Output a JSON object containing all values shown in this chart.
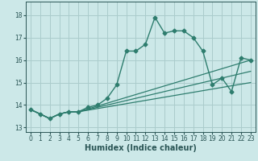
{
  "xlabel": "Humidex (Indice chaleur)",
  "bg_color": "#cce8e8",
  "grid_color": "#aacccc",
  "line_color": "#2e7d6e",
  "xlim": [
    -0.5,
    23.5
  ],
  "ylim": [
    12.8,
    18.6
  ],
  "yticks": [
    13,
    14,
    15,
    16,
    17,
    18
  ],
  "xticks": [
    0,
    1,
    2,
    3,
    4,
    5,
    6,
    7,
    8,
    9,
    10,
    11,
    12,
    13,
    14,
    15,
    16,
    17,
    18,
    19,
    20,
    21,
    22,
    23
  ],
  "series": [
    [
      0,
      13.8
    ],
    [
      1,
      13.6
    ],
    [
      2,
      13.4
    ],
    [
      3,
      13.6
    ],
    [
      4,
      13.7
    ],
    [
      5,
      13.7
    ],
    [
      6,
      13.9
    ],
    [
      7,
      14.0
    ],
    [
      8,
      14.3
    ],
    [
      9,
      14.9
    ],
    [
      10,
      16.4
    ],
    [
      11,
      16.4
    ],
    [
      12,
      16.7
    ],
    [
      13,
      17.9
    ],
    [
      14,
      17.2
    ],
    [
      15,
      17.3
    ],
    [
      16,
      17.3
    ],
    [
      17,
      17.0
    ],
    [
      18,
      16.4
    ],
    [
      19,
      14.9
    ],
    [
      20,
      15.2
    ],
    [
      21,
      14.6
    ],
    [
      22,
      16.1
    ],
    [
      23,
      16.0
    ]
  ],
  "fan_lines": [
    [
      [
        0,
        13.8
      ],
      [
        1,
        13.6
      ],
      [
        2,
        13.4
      ],
      [
        3,
        13.6
      ],
      [
        4,
        13.7
      ],
      [
        5,
        13.7
      ],
      [
        23,
        16.0
      ]
    ],
    [
      [
        0,
        13.8
      ],
      [
        1,
        13.6
      ],
      [
        2,
        13.4
      ],
      [
        3,
        13.6
      ],
      [
        4,
        13.7
      ],
      [
        5,
        13.7
      ],
      [
        23,
        15.5
      ]
    ],
    [
      [
        0,
        13.8
      ],
      [
        1,
        13.6
      ],
      [
        2,
        13.4
      ],
      [
        3,
        13.6
      ],
      [
        4,
        13.7
      ],
      [
        5,
        13.7
      ],
      [
        23,
        15.0
      ]
    ]
  ]
}
